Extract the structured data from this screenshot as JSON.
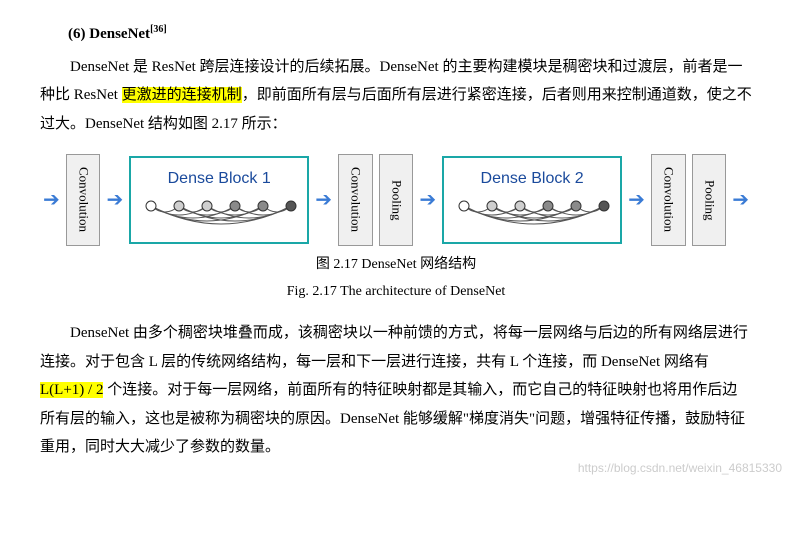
{
  "heading": {
    "prefix": "(6) DenseNet",
    "citation": "[36]"
  },
  "para1": {
    "t1": "DenseNet 是 ResNet 跨层连接设计的后续拓展。DenseNet 的主要构建模块是稠密块和过渡层，前者是一种比 ResNet ",
    "hl": "更激进的连接机制",
    "t2": "，即前面所有层与后面所有层进行紧密连接，后者则用来控制通道数，使之不过大。DenseNet 结构如图 2.17 所示："
  },
  "figure": {
    "block_labels": {
      "conv": "Convolution",
      "pool": "Pooling",
      "db1": "Dense Block 1",
      "db2": "Dense Block 2"
    },
    "dense_border_color": "#1aa7a7",
    "arrow_color": "#3a7bd5",
    "node_colors": {
      "first_fill": "#ffffff",
      "last_fill": "#555555",
      "mid_fill_light": "#cfcfcf",
      "mid_fill_dark": "#8a8a8a",
      "stroke": "#333333"
    },
    "edge_color": "#555555",
    "node_count": 6,
    "caption_cn": "图 2.17    DenseNet 网络结构",
    "caption_en": "Fig. 2.17    The architecture of DenseNet"
  },
  "para2": {
    "t1": "DenseNet 由多个稠密块堆叠而成，该稠密块以一种前馈的方式，将每一层网络与后边的所有网络层进行连接。对于包含 L 层的传统网络结构，每一层和下一层进行连接，共有 L 个连接，而 DenseNet 网络有 ",
    "hl": "L(L+1) / 2",
    "t2": " 个连接。对于每一层网络，前面所有的特征映射都是其输入，而它自己的特征映射也将用作后边所有层的输入，这也是被称为稠密块的原因。DenseNet 能够缓解\"梯度消失\"问题，增强特征传播，鼓励特征重用，同时大大减少了参数的数量。"
  },
  "watermark": "https://blog.csdn.net/weixin_46815330"
}
